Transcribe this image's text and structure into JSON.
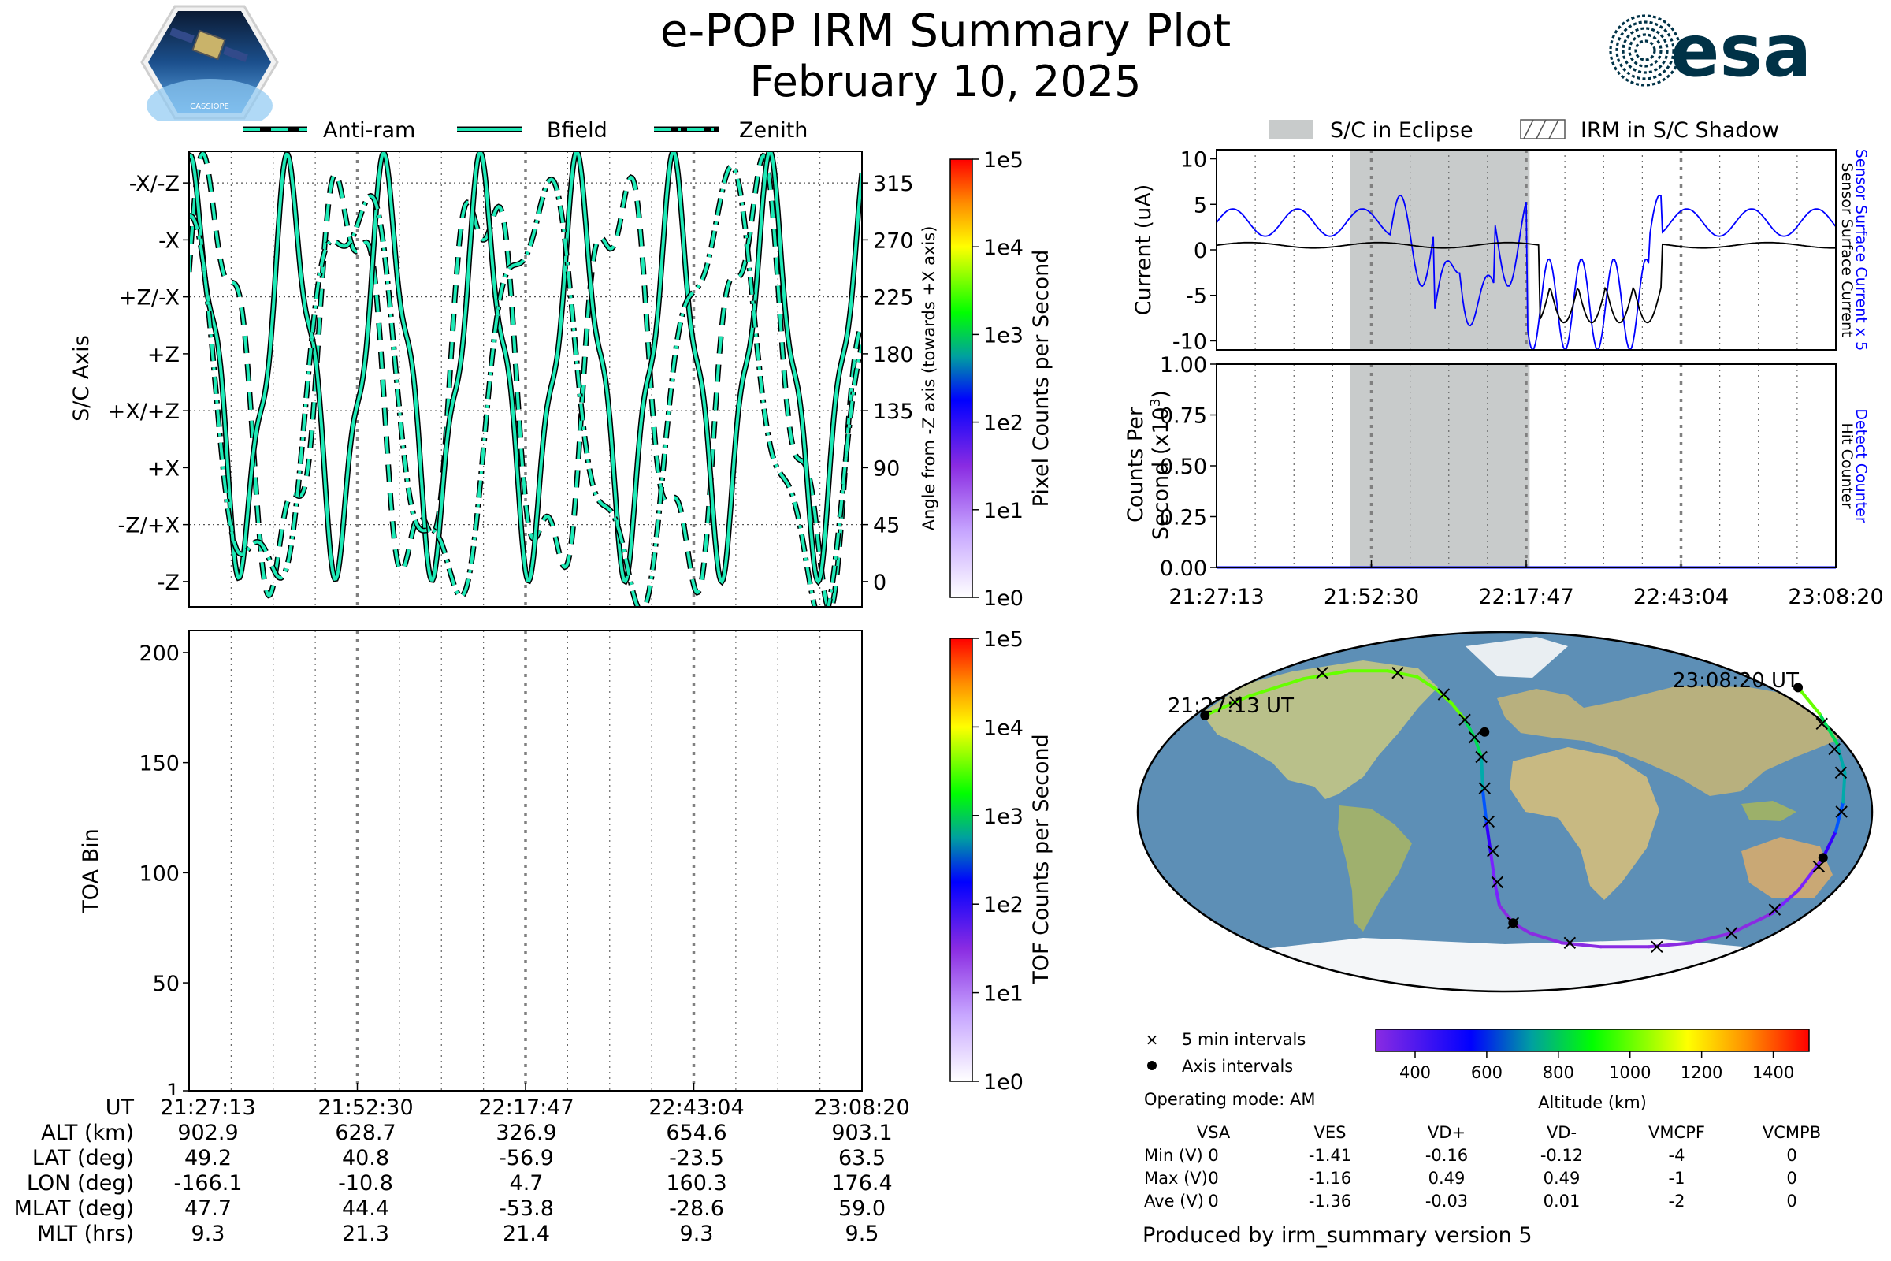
{
  "header": {
    "title": "e-POP IRM Summary Plot",
    "date": "February 10, 2025",
    "mission_badge_text": "CASSIOPE",
    "agency_logo_text": "esa"
  },
  "legend_top_left": [
    "Anti-ram",
    "Bfield",
    "Zenith"
  ],
  "legend_top_right": [
    "S/C in Eclipse",
    "IRM in S/C Shadow"
  ],
  "time_ticks": [
    "21:27:13",
    "21:52:30",
    "22:17:47",
    "22:43:04",
    "23:08:20"
  ],
  "colors": {
    "accent_line": "#1de9b6",
    "eclipse": "#c8cbcb",
    "sensor_current": "#0000ff",
    "ocean": "#5d8fb6",
    "land": "#b9c08a"
  },
  "chart_data": [
    {
      "type": "line",
      "name": "sc-axis-panel",
      "ylabel": "S/C Axis",
      "ylabel_right": "Angle from -Z axis (towards +X axis)",
      "axis_labels": [
        "-X/-Z",
        "-X",
        "+Z/-X",
        "+Z",
        "+X/+Z",
        "+X",
        "-Z/+X",
        "-Z"
      ],
      "right_ticks": [
        315,
        270,
        225,
        180,
        135,
        90,
        45,
        0
      ],
      "ylim": [
        -20,
        340
      ],
      "series": [
        {
          "name": "Anti-ram",
          "style": "dashed"
        },
        {
          "name": "Bfield",
          "style": "solid"
        },
        {
          "name": "Zenith",
          "style": "dashdot"
        }
      ],
      "colorbar": {
        "label": "Pixel Counts per Second",
        "ticks": [
          "1e5",
          "1e4",
          "1e3",
          "1e2",
          "1e1",
          "1e0"
        ]
      }
    },
    {
      "type": "heatmap",
      "name": "toa-panel",
      "ylabel": "TOA Bin",
      "yticks": [
        1,
        50,
        100,
        150,
        200
      ],
      "ylim": [
        1,
        210
      ],
      "colorbar": {
        "label": "TOF Counts per Second",
        "ticks": [
          "1e5",
          "1e4",
          "1e3",
          "1e2",
          "1e1",
          "1e0"
        ]
      }
    },
    {
      "type": "line",
      "name": "current-panel",
      "ylabel": "Current (uA)",
      "ylabel_right": [
        "Sensor Surface Current x 5",
        "Sensor Surface Current"
      ],
      "yticks": [
        10,
        5,
        0,
        -5,
        -10
      ],
      "ylim": [
        -11,
        11
      ],
      "series": [
        {
          "name": "Sensor Surface Current x 5",
          "color": "#0000ff"
        },
        {
          "name": "Sensor Surface Current",
          "color": "#000000"
        }
      ],
      "eclipse_interval": [
        "21:49:05",
        "22:18:20"
      ]
    },
    {
      "type": "line",
      "name": "counts-panel",
      "ylabel": [
        "Counts Per",
        "Second (x10",
        "3",
        ")"
      ],
      "ylabel_right": [
        "Detect Counter",
        "Hit Counter"
      ],
      "yticks": [
        "1.00",
        "0.75",
        "0.50",
        "0.25",
        "0.00"
      ],
      "ylim": [
        0,
        1
      ],
      "series": [
        {
          "name": "Detect Counter",
          "color": "#0000ff",
          "values": [
            0,
            0
          ]
        },
        {
          "name": "Hit Counter",
          "color": "#000000",
          "values": [
            0,
            0
          ]
        }
      ],
      "eclipse_interval": [
        "21:49:05",
        "22:18:20"
      ]
    },
    {
      "type": "scatter",
      "name": "ground-track-map",
      "start_label": "21:27:13 UT",
      "end_label": "23:08:20 UT",
      "track_lonlat": [
        [
          -166.1,
          49.2
        ],
        [
          -150,
          59
        ],
        [
          -125,
          68
        ],
        [
          -100,
          72
        ],
        [
          -75,
          72
        ],
        [
          -55,
          69
        ],
        [
          -40,
          62
        ],
        [
          -30,
          55
        ],
        [
          -22,
          47
        ],
        [
          -16,
          38
        ],
        [
          -12,
          28
        ],
        [
          -10.8,
          10
        ],
        [
          -9,
          -6
        ],
        [
          -7,
          -22
        ],
        [
          -5,
          -38
        ],
        [
          -3,
          -48
        ],
        [
          4.7,
          -56.9
        ],
        [
          15,
          -62
        ],
        [
          35,
          -67
        ],
        [
          60,
          -69
        ],
        [
          90,
          -69
        ],
        [
          115,
          -67
        ],
        [
          135,
          -62
        ],
        [
          150,
          -52
        ],
        [
          156,
          -40
        ],
        [
          160.3,
          -23.5
        ],
        [
          163,
          -10
        ],
        [
          166,
          5
        ],
        [
          170,
          20
        ],
        [
          173,
          35
        ],
        [
          175,
          50
        ],
        [
          176.4,
          63.5
        ]
      ],
      "five_min_marks": [
        [
          -155,
          56
        ],
        [
          -116,
          71
        ],
        [
          -68,
          71
        ],
        [
          -36,
          60
        ],
        [
          -22,
          47
        ],
        [
          -16,
          38
        ],
        [
          -12,
          28
        ],
        [
          -10,
          12
        ],
        [
          -8,
          -5
        ],
        [
          -6,
          -20
        ],
        [
          -4,
          -36
        ],
        [
          4.7,
          -56.9
        ],
        [
          40,
          -67
        ],
        [
          95,
          -69
        ],
        [
          135,
          -62
        ],
        [
          150,
          -50
        ],
        [
          160,
          -28
        ],
        [
          165,
          0
        ],
        [
          168,
          20
        ],
        [
          170,
          32
        ],
        [
          172,
          45
        ]
      ],
      "axis_marks": [
        [
          -166.1,
          49.2
        ],
        [
          -10.8,
          40.8
        ],
        [
          4.7,
          -56.9
        ],
        [
          160.3,
          -23.5
        ],
        [
          176.4,
          63.5
        ]
      ],
      "legend": [
        "5 min intervals",
        "Axis intervals"
      ],
      "colorbar": {
        "label": "Altitude (km)",
        "ticks": [
          400,
          600,
          800,
          1000,
          1200,
          1400
        ]
      }
    }
  ],
  "bottom_table": {
    "row_labels": [
      "UT",
      "ALT (km)",
      "LAT (deg)",
      "LON (deg)",
      "MLAT (deg)",
      "MLT (hrs)"
    ],
    "columns": [
      [
        "21:27:13",
        "902.9",
        "49.2",
        "-166.1",
        "47.7",
        "9.3"
      ],
      [
        "21:52:30",
        "628.7",
        "40.8",
        "-10.8",
        "44.4",
        "21.3"
      ],
      [
        "22:17:47",
        "326.9",
        "-56.9",
        "4.7",
        "-53.8",
        "21.4"
      ],
      [
        "22:43:04",
        "654.6",
        "-23.5",
        "160.3",
        "-28.6",
        "9.3"
      ],
      [
        "23:08:20",
        "903.1",
        "63.5",
        "176.4",
        "59.0",
        "9.5"
      ]
    ]
  },
  "operating_mode": "Operating mode: AM",
  "voltage_table": {
    "headers": [
      "VSA",
      "VES",
      "VD+",
      "VD-",
      "VMCPF",
      "VCMPB"
    ],
    "rows": [
      {
        "label": "Min (V)",
        "values": [
          "0",
          "-1.41",
          "-0.16",
          "-0.12",
          "-4",
          "0"
        ]
      },
      {
        "label": "Max (V)",
        "values": [
          "0",
          "-1.16",
          "0.49",
          "0.49",
          "-1",
          "0"
        ]
      },
      {
        "label": "Ave (V)",
        "values": [
          "0",
          "-1.36",
          "-0.03",
          "0.01",
          "-2",
          "0"
        ]
      }
    ]
  },
  "footer": "Produced by irm_summary version 5"
}
